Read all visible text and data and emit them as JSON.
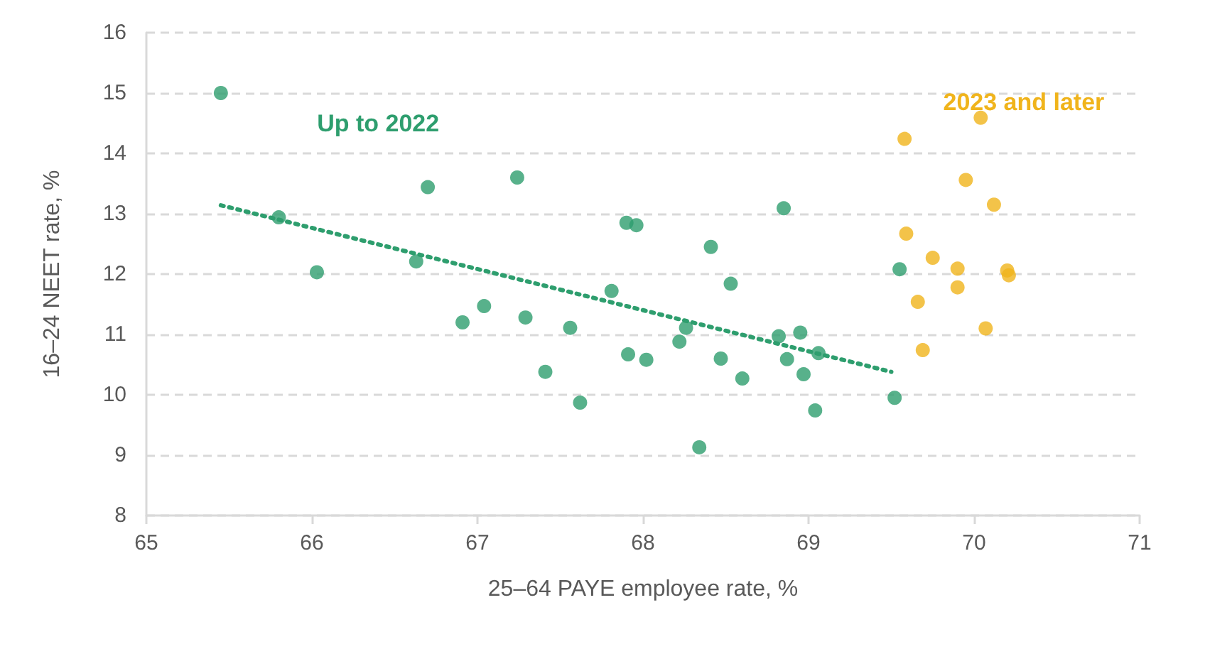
{
  "chart_data": {
    "type": "scatter",
    "xlabel": "25–64 PAYE employee rate, %",
    "ylabel": "16–24 NEET rate, %",
    "xlim": [
      65,
      71
    ],
    "xticks": [
      65,
      66,
      67,
      68,
      69,
      70,
      71
    ],
    "ylim": [
      8,
      16
    ],
    "yticks": [
      8,
      9,
      10,
      11,
      12,
      13,
      14,
      15,
      16
    ],
    "grid": "y",
    "marker": "circle",
    "series": [
      {
        "name": "Up to 2022",
        "color": "#2e9e6e",
        "x": [
          65.45,
          65.8,
          66.03,
          66.7,
          66.63,
          67.24,
          66.91,
          67.04,
          67.29,
          67.41,
          67.56,
          67.62,
          67.81,
          67.9,
          67.96,
          67.91,
          68.02,
          68.41,
          68.53,
          68.85,
          68.22,
          68.26,
          68.47,
          68.6,
          68.34,
          68.82,
          68.95,
          68.87,
          68.97,
          69.06,
          69.04,
          69.55,
          69.52
        ],
        "values": [
          15.0,
          12.94,
          12.03,
          13.44,
          12.21,
          13.6,
          11.2,
          11.47,
          11.28,
          10.38,
          11.11,
          9.87,
          11.72,
          12.85,
          12.81,
          10.67,
          10.58,
          12.45,
          11.84,
          13.09,
          10.88,
          11.11,
          10.6,
          10.27,
          9.13,
          10.97,
          11.03,
          10.59,
          10.34,
          10.69,
          9.74,
          12.08,
          9.95
        ]
      },
      {
        "name": "2023 and later",
        "color": "#f0b41c",
        "x": [
          69.58,
          70.04,
          69.95,
          70.12,
          69.59,
          69.75,
          69.9,
          69.9,
          70.2,
          70.21,
          69.66,
          70.07,
          69.69
        ],
        "values": [
          14.24,
          14.59,
          13.56,
          13.15,
          12.67,
          12.27,
          12.09,
          11.78,
          12.06,
          11.98,
          11.54,
          11.1,
          10.74
        ]
      },
      {
        "type": "line",
        "color": "#2e9e6e",
        "line_style": "dotted",
        "marker": "none",
        "x": [
          65.45,
          69.5
        ],
        "values": [
          13.14,
          10.38
        ]
      }
    ]
  }
}
